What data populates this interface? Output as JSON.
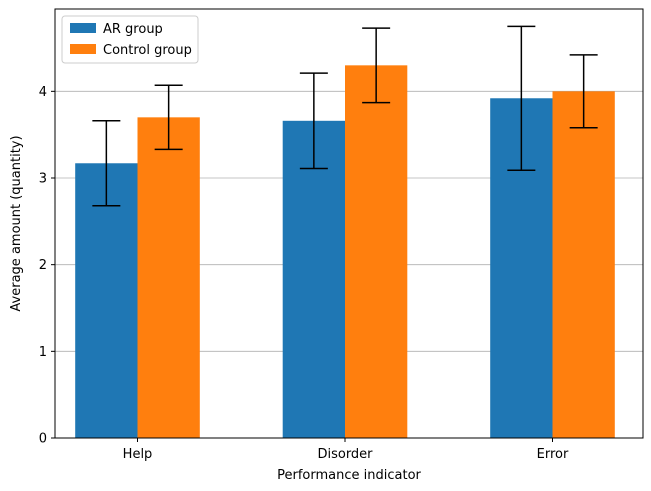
{
  "chart_data": {
    "type": "bar",
    "title": "",
    "xlabel": "Performance indicator",
    "ylabel": "Average amount (quantity)",
    "categories": [
      "Help",
      "Disorder",
      "Error"
    ],
    "series": [
      {
        "name": "AR group",
        "color": "#1f77b4",
        "values": [
          3.17,
          3.66,
          3.92
        ],
        "error": [
          0.49,
          0.55,
          0.83
        ]
      },
      {
        "name": "Control group",
        "color": "#ff7f0e",
        "values": [
          3.7,
          4.3,
          4.0
        ],
        "error": [
          0.37,
          0.43,
          0.42
        ]
      }
    ],
    "ylim": [
      0,
      4.95
    ],
    "yticks": [
      0,
      1,
      2,
      3,
      4
    ],
    "grid": "horizontal",
    "legend": "top-left"
  }
}
